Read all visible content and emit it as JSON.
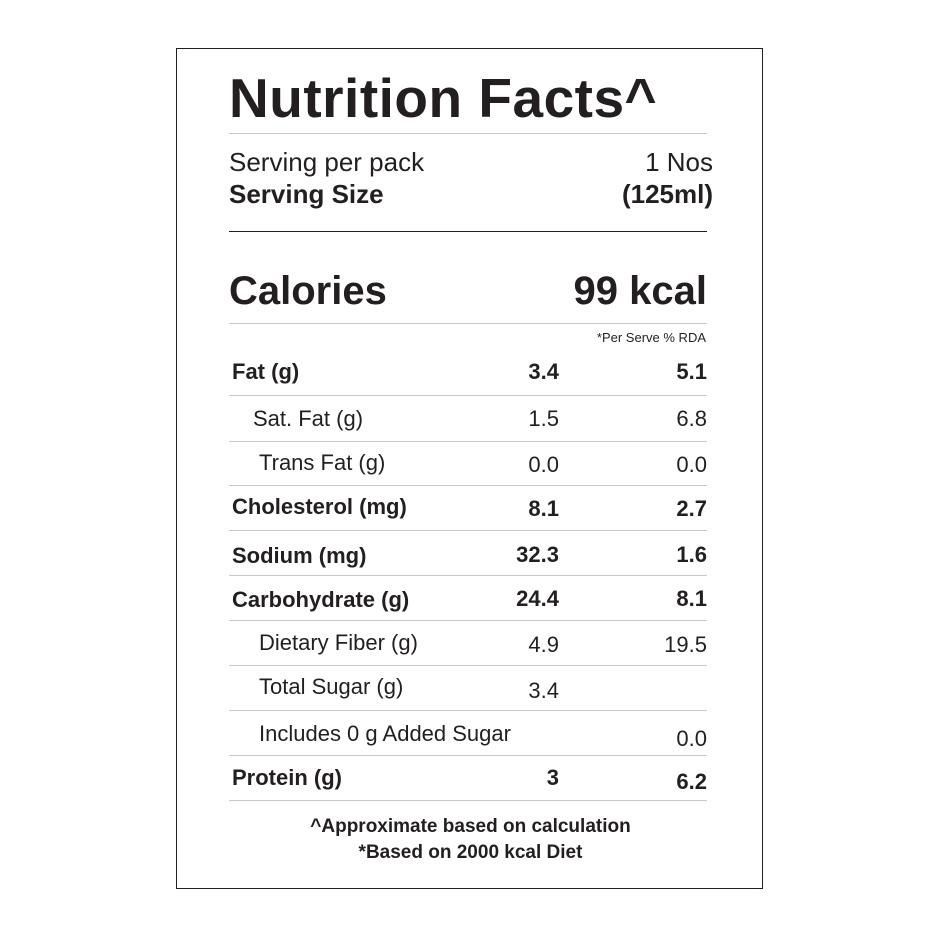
{
  "title": "Nutrition Facts^",
  "serving": {
    "per_pack_label": "Serving per pack",
    "per_pack_value": "1 Nos",
    "size_label": "Serving Size",
    "size_value": "(125ml)"
  },
  "calories": {
    "label": "Calories",
    "value": "99 kcal"
  },
  "rda_note": "*Per Serve % RDA",
  "nutrients": [
    {
      "name": "Fat (g)",
      "amount": "3.4",
      "rda": "5.1"
    },
    {
      "name": "Sat. Fat (g)",
      "amount": "1.5",
      "rda": "6.8"
    },
    {
      "name": "Trans Fat (g)",
      "amount": "0.0",
      "rda": "0.0"
    },
    {
      "name": "Cholesterol (mg)",
      "amount": "8.1",
      "rda": "2.7"
    },
    {
      "name": "Sodium (mg)",
      "amount": "32.3",
      "rda": "1.6"
    },
    {
      "name": "Carbohydrate (g)",
      "amount": "24.4",
      "rda": "8.1"
    },
    {
      "name": "Dietary Fiber (g)",
      "amount": "4.9",
      "rda": "19.5"
    },
    {
      "name": "Total Sugar (g)",
      "amount": "3.4",
      "rda": ""
    },
    {
      "name": "Includes 0 g Added Sugar",
      "amount": "",
      "rda": "0.0"
    },
    {
      "name": "Protein (g)",
      "amount": "3",
      "rda": "6.2"
    }
  ],
  "footnotes": [
    "^Approximate based on calculation",
    "*Based on 2000 kcal Diet"
  ]
}
